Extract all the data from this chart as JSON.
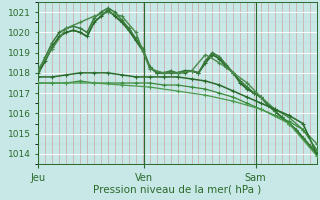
{
  "xlabel": "Pression niveau de la mer( hPa )",
  "background_color": "#c8e8e8",
  "ylim": [
    1013.5,
    1021.5
  ],
  "yticks": [
    1014,
    1015,
    1016,
    1017,
    1018,
    1019,
    1020,
    1021
  ],
  "day_labels": [
    "Jeu",
    "Ven",
    "Sam"
  ],
  "day_positions": [
    0,
    0.38,
    0.78
  ],
  "lines": [
    {
      "x": [
        0.0,
        0.025,
        0.05,
        0.075,
        0.1,
        0.125,
        0.15,
        0.175,
        0.2,
        0.225,
        0.25,
        0.275,
        0.3,
        0.325,
        0.35,
        0.375,
        0.4,
        0.425,
        0.45,
        0.475,
        0.5,
        0.525,
        0.55,
        0.575,
        0.6,
        0.625,
        0.65,
        0.675,
        0.7,
        0.725,
        0.75,
        0.775,
        0.8,
        0.825,
        0.85,
        0.875,
        0.9,
        0.925,
        0.95,
        0.975,
        1.0
      ],
      "y": [
        1018.0,
        1018.6,
        1019.3,
        1019.8,
        1020.0,
        1020.1,
        1020.0,
        1019.8,
        1020.5,
        1020.8,
        1021.1,
        1020.8,
        1020.5,
        1020.1,
        1019.6,
        1019.1,
        1018.3,
        1018.0,
        1018.0,
        1018.0,
        1018.0,
        1018.1,
        1018.1,
        1018.0,
        1018.5,
        1018.9,
        1018.7,
        1018.3,
        1018.0,
        1017.5,
        1017.2,
        1017.0,
        1016.8,
        1016.4,
        1016.1,
        1015.8,
        1015.5,
        1015.2,
        1014.8,
        1014.4,
        1014.0
      ],
      "color": "#2a6a2a",
      "lw": 1.3,
      "marker": "+"
    },
    {
      "x": [
        0.0,
        0.025,
        0.05,
        0.075,
        0.1,
        0.125,
        0.15,
        0.175,
        0.2,
        0.225,
        0.25,
        0.275,
        0.3,
        0.325,
        0.35,
        0.375,
        0.4,
        0.425,
        0.45,
        0.475,
        0.5,
        0.525,
        0.55,
        0.575,
        0.6,
        0.625,
        0.65,
        0.675,
        0.7,
        0.725,
        0.75,
        0.775,
        0.8,
        0.825,
        0.85,
        0.875,
        0.9,
        0.925,
        0.95,
        0.975,
        1.0
      ],
      "y": [
        1018.1,
        1018.8,
        1019.5,
        1020.0,
        1020.2,
        1020.3,
        1020.2,
        1020.0,
        1020.7,
        1021.0,
        1021.2,
        1021.0,
        1020.6,
        1020.2,
        1019.7,
        1019.2,
        1018.3,
        1018.0,
        1018.0,
        1018.1,
        1018.0,
        1018.0,
        1018.1,
        1018.0,
        1018.6,
        1019.0,
        1018.8,
        1018.4,
        1018.0,
        1017.6,
        1017.3,
        1017.0,
        1016.8,
        1016.4,
        1016.1,
        1015.8,
        1015.5,
        1015.2,
        1014.8,
        1014.4,
        1014.0
      ],
      "color": "#3a7a3a",
      "lw": 1.1,
      "marker": "+"
    },
    {
      "x": [
        0.0,
        0.05,
        0.1,
        0.15,
        0.2,
        0.25,
        0.3,
        0.35,
        0.4,
        0.45,
        0.5,
        0.55,
        0.6,
        0.65,
        0.7,
        0.75,
        0.8,
        0.85,
        0.9,
        0.95,
        1.0
      ],
      "y": [
        1018.2,
        1019.2,
        1020.2,
        1020.5,
        1020.8,
        1021.0,
        1020.8,
        1020.0,
        1018.2,
        1018.0,
        1018.0,
        1018.1,
        1018.9,
        1018.5,
        1018.0,
        1017.5,
        1016.8,
        1016.2,
        1015.8,
        1015.2,
        1014.5
      ],
      "color": "#4a8a4a",
      "lw": 1.0,
      "marker": "+"
    },
    {
      "x": [
        0.0,
        0.05,
        0.1,
        0.15,
        0.2,
        0.25,
        0.3,
        0.35,
        0.4,
        0.45,
        0.5,
        0.55,
        0.6,
        0.65,
        0.7,
        0.75,
        0.8,
        0.85,
        0.9,
        0.95,
        1.0
      ],
      "y": [
        1017.8,
        1017.8,
        1017.9,
        1018.0,
        1018.0,
        1018.0,
        1017.9,
        1017.8,
        1017.8,
        1017.8,
        1017.8,
        1017.7,
        1017.6,
        1017.4,
        1017.1,
        1016.8,
        1016.5,
        1016.2,
        1015.9,
        1015.5,
        1014.0
      ],
      "color": "#2a6a2a",
      "lw": 1.1,
      "marker": "+"
    },
    {
      "x": [
        0.0,
        0.05,
        0.1,
        0.15,
        0.2,
        0.25,
        0.3,
        0.35,
        0.4,
        0.45,
        0.5,
        0.55,
        0.6,
        0.65,
        0.7,
        0.75,
        0.8,
        0.85,
        0.9,
        0.95,
        1.0
      ],
      "y": [
        1017.5,
        1017.5,
        1017.5,
        1017.6,
        1017.5,
        1017.5,
        1017.5,
        1017.5,
        1017.5,
        1017.4,
        1017.4,
        1017.3,
        1017.2,
        1017.0,
        1016.8,
        1016.5,
        1016.2,
        1015.9,
        1015.6,
        1015.2,
        1014.2
      ],
      "color": "#3a8a3a",
      "lw": 0.9,
      "marker": "+"
    },
    {
      "x": [
        0.0,
        0.1,
        0.2,
        0.3,
        0.4,
        0.5,
        0.6,
        0.7,
        0.8,
        0.9,
        1.0
      ],
      "y": [
        1017.5,
        1017.5,
        1017.5,
        1017.4,
        1017.3,
        1017.1,
        1016.9,
        1016.6,
        1016.2,
        1015.5,
        1013.9
      ],
      "color": "#4a9a4a",
      "lw": 0.9,
      "marker": "+"
    }
  ],
  "vline_color": "#2a6a2a",
  "vline_lw": 0.8
}
